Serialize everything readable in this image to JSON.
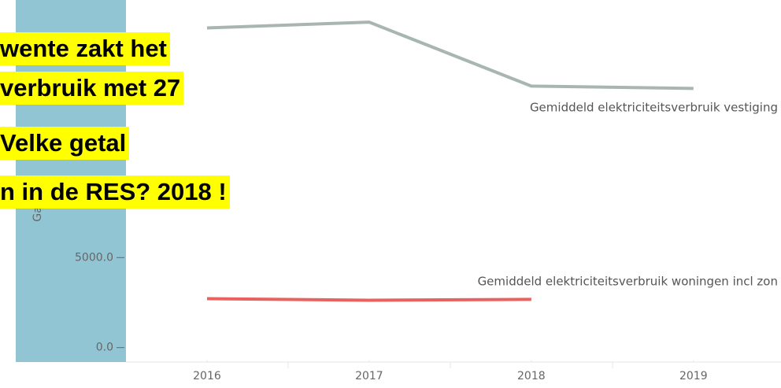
{
  "chart_data": {
    "type": "line",
    "y_label": "Ga",
    "x": [
      2016,
      2017,
      2018,
      2019
    ],
    "xlim": [
      2015.5,
      2019.54
    ],
    "xticks": [
      2016,
      2017,
      2018,
      2019
    ],
    "ylim": [
      -800,
      19300
    ],
    "yticks": [
      {
        "value": 0,
        "label": "0.0"
      },
      {
        "value": 5000,
        "label": "5000.0"
      }
    ],
    "series": [
      {
        "name": "Gemiddeld elektriciteitsverbruik vestiging",
        "color": "#a8b6b2",
        "values": [
          17750,
          18070,
          14520,
          14390
        ]
      },
      {
        "name": "Gemiddeld elektriciteitsverbruik woningen incl zon",
        "color": "#e8625f",
        "values": [
          2720,
          2630,
          2680,
          null
        ]
      }
    ]
  },
  "annotation": {
    "lines": [
      "wente zakt het",
      "verbruik met 27",
      "Velke getal",
      "n in de RES? 2018 !"
    ]
  }
}
